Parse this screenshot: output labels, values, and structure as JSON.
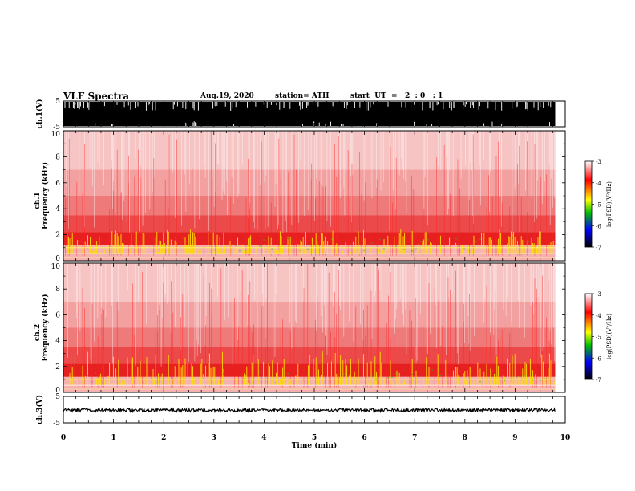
{
  "header": {
    "title": "VLF Spectra",
    "date": "Aug.19, 2020",
    "station": "station= ATH",
    "start": "start  UT  =   2  : 0   : 1"
  },
  "chart_data": {
    "type": "heatmap",
    "panels": [
      {
        "id": "ch1-waveform",
        "kind": "waveform",
        "ylabel": "ch.1(V)",
        "ylim": [
          -5,
          5
        ],
        "yticks": [
          "5",
          "-5"
        ]
      },
      {
        "id": "ch1-spectrogram",
        "kind": "spectrogram",
        "ylabel_top": "ch.1",
        "ylabel": "Frequency  (kHz)",
        "ylim": [
          0,
          10
        ],
        "yticks": [
          "0",
          "2",
          "4",
          "6",
          "8",
          "10"
        ]
      },
      {
        "id": "ch2-spectrogram",
        "kind": "spectrogram",
        "ylabel_top": "ch.2",
        "ylabel": "Frequency  (kHz)",
        "ylim": [
          0,
          10
        ],
        "yticks": [
          "0",
          "2",
          "4",
          "6",
          "8",
          "10"
        ]
      },
      {
        "id": "ch3-waveform",
        "kind": "waveform",
        "ylabel": "ch.3(V)",
        "ylim": [
          -5,
          5
        ],
        "yticks": [
          "5",
          "-5"
        ]
      }
    ],
    "xlabel": "Time  (min)",
    "xlim": [
      0,
      10
    ],
    "xticks": [
      "0",
      "1",
      "2",
      "3",
      "4",
      "5",
      "6",
      "7",
      "8",
      "9",
      "10"
    ],
    "data_end_min": 9.8,
    "colorbar": {
      "label": "log(PSD)(V²/Hz)",
      "range": [
        -7,
        -3
      ],
      "ticks": [
        "-3",
        "-4",
        "-5",
        "-6",
        "-7"
      ],
      "colors": [
        "#ffffff",
        "#ff0000",
        "#ffff00",
        "#00c000",
        "#0000ff",
        "#000000"
      ]
    }
  }
}
